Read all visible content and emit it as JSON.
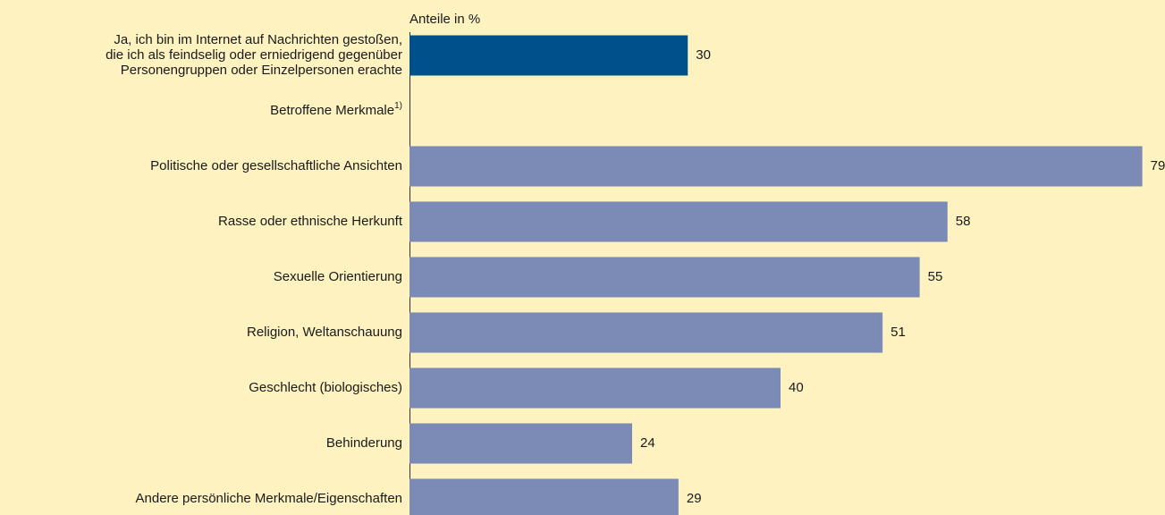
{
  "chart_data": {
    "type": "bar",
    "orientation": "horizontal",
    "axis_label": "Anteile in %",
    "categories": [
      [
        "Ja, ich bin im Internet auf Nachrichten gestoßen,",
        "die ich als feindselig oder erniedrigend gegenüber",
        "Personengruppen oder Einzelpersonen erachte"
      ],
      "Betroffene Merkmale",
      "Politische oder gesellschaftliche Ansichten",
      "Rasse oder ethnische Herkunft",
      "Sexuelle Orientierung",
      "Religion, Weltanschauung",
      "Geschlecht (biologisches)",
      "Behinderung",
      "Andere persönliche Merkmale/Eigenschaften"
    ],
    "footnote_markers": [
      null,
      "1)",
      null,
      null,
      null,
      null,
      null,
      null,
      null
    ],
    "values": [
      30,
      null,
      79,
      58,
      55,
      51,
      40,
      24,
      29
    ],
    "colors": [
      "#00518b",
      null,
      "#7b8bb6",
      "#7b8bb6",
      "#7b8bb6",
      "#7b8bb6",
      "#7b8bb6",
      "#7b8bb6",
      "#7b8bb6"
    ],
    "xlim": [
      0,
      80
    ]
  }
}
